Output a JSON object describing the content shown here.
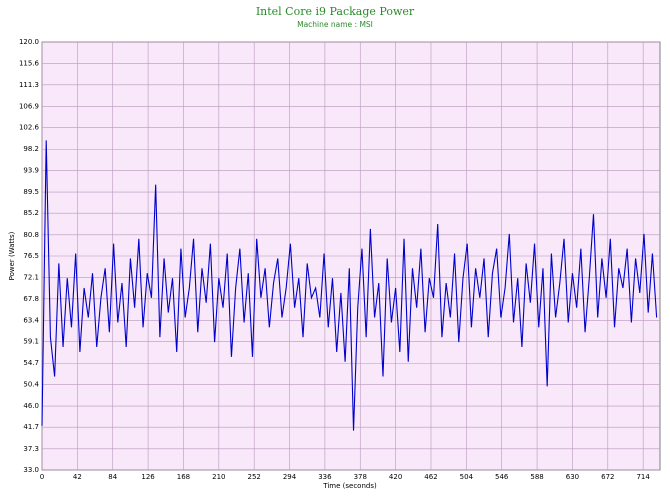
{
  "chart_data": {
    "type": "line",
    "title": "Intel Core i9 Package Power",
    "subtitle": "Machine name : MSI",
    "x_label": "Time (seconds)",
    "y_label": "Power (Watts)",
    "xlim": [
      0,
      734
    ],
    "xticks": [
      0,
      42,
      84,
      126,
      168,
      210,
      252,
      294,
      336,
      378,
      420,
      462,
      504,
      546,
      588,
      630,
      672,
      714
    ],
    "ylim": [
      33,
      120
    ],
    "yticks": [
      {
        "value": 33,
        "label": "33.0"
      },
      37.3,
      41.7,
      {
        "value": 46,
        "label": "46.0"
      },
      50.4,
      54.7,
      59.1,
      63.4,
      67.8,
      72.1,
      76.5,
      80.8,
      85.2,
      89.5,
      93.9,
      98.2,
      102.6,
      106.9,
      111.3,
      115.6,
      {
        "value": 120,
        "label": "120.0"
      }
    ],
    "grid": true,
    "x": [
      0,
      5,
      10,
      15,
      20,
      25,
      30,
      35,
      40,
      45,
      50,
      55,
      60,
      65,
      70,
      75,
      80,
      85,
      90,
      95,
      100,
      105,
      110,
      115,
      120,
      125,
      130,
      135,
      140,
      145,
      150,
      155,
      160,
      165,
      170,
      175,
      180,
      185,
      190,
      195,
      200,
      205,
      210,
      215,
      220,
      225,
      230,
      235,
      240,
      245,
      250,
      255,
      260,
      265,
      270,
      275,
      280,
      285,
      290,
      295,
      300,
      305,
      310,
      315,
      320,
      325,
      330,
      335,
      340,
      345,
      350,
      355,
      360,
      365,
      370,
      375,
      380,
      385,
      390,
      395,
      400,
      405,
      410,
      415,
      420,
      425,
      430,
      435,
      440,
      445,
      450,
      455,
      460,
      465,
      470,
      475,
      480,
      485,
      490,
      495,
      500,
      505,
      510,
      515,
      520,
      525,
      530,
      535,
      540,
      545,
      550,
      555,
      560,
      565,
      570,
      575,
      580,
      585,
      590,
      595,
      600,
      605,
      610,
      615,
      620,
      625,
      630,
      635,
      640,
      645,
      650,
      655,
      660,
      665,
      670,
      675,
      680,
      685,
      690,
      695,
      700,
      705,
      710,
      715,
      720,
      725,
      730
    ],
    "series": [
      {
        "name": "Package Power",
        "color": "#0000cc",
        "values": [
          42,
          100,
          60,
          52,
          75,
          58,
          72,
          62,
          77,
          57,
          70,
          64,
          73,
          58,
          68,
          74,
          61,
          79,
          63,
          71,
          58,
          76,
          66,
          80,
          62,
          73,
          68,
          91,
          60,
          76,
          65,
          72,
          57,
          78,
          64,
          70,
          80,
          61,
          74,
          67,
          79,
          59,
          72,
          66,
          77,
          56,
          70,
          78,
          63,
          73,
          56,
          80,
          68,
          74,
          62,
          71,
          76,
          64,
          70,
          79,
          66,
          72,
          60,
          75,
          68,
          70,
          64,
          77,
          62,
          72,
          57,
          69,
          55,
          74,
          41,
          66,
          78,
          60,
          82,
          64,
          71,
          52,
          76,
          63,
          70,
          57,
          80,
          55,
          74,
          66,
          78,
          61,
          72,
          68,
          83,
          60,
          71,
          64,
          77,
          59,
          72,
          79,
          62,
          74,
          68,
          76,
          60,
          73,
          78,
          64,
          70,
          81,
          63,
          72,
          58,
          75,
          67,
          79,
          62,
          74,
          50,
          77,
          64,
          71,
          80,
          63,
          73,
          66,
          78,
          61,
          72,
          85,
          64,
          76,
          68,
          80,
          62,
          74,
          70,
          78,
          63,
          76,
          69,
          81,
          65,
          77,
          64
        ]
      }
    ]
  }
}
